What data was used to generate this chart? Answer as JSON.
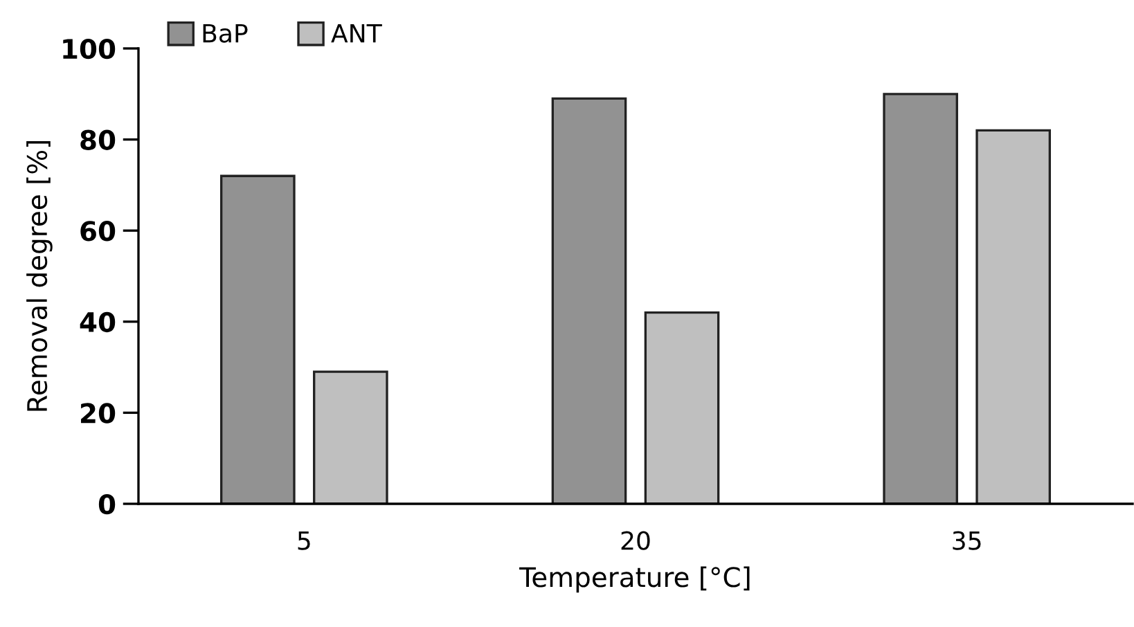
{
  "chart_data": {
    "type": "bar",
    "xlabel": "Temperature [°C]",
    "ylabel": "Removal degree [%]",
    "categories": [
      "5",
      "20",
      "35"
    ],
    "series": [
      {
        "name": "BaP",
        "color": "#929292",
        "values": [
          72,
          89,
          90
        ]
      },
      {
        "name": "ANT",
        "color": "#bfbfbf",
        "values": [
          29,
          42,
          82
        ]
      }
    ],
    "ylim": [
      0,
      100
    ],
    "yticks": [
      0,
      20,
      40,
      60,
      80,
      100
    ],
    "legend": "top left"
  }
}
